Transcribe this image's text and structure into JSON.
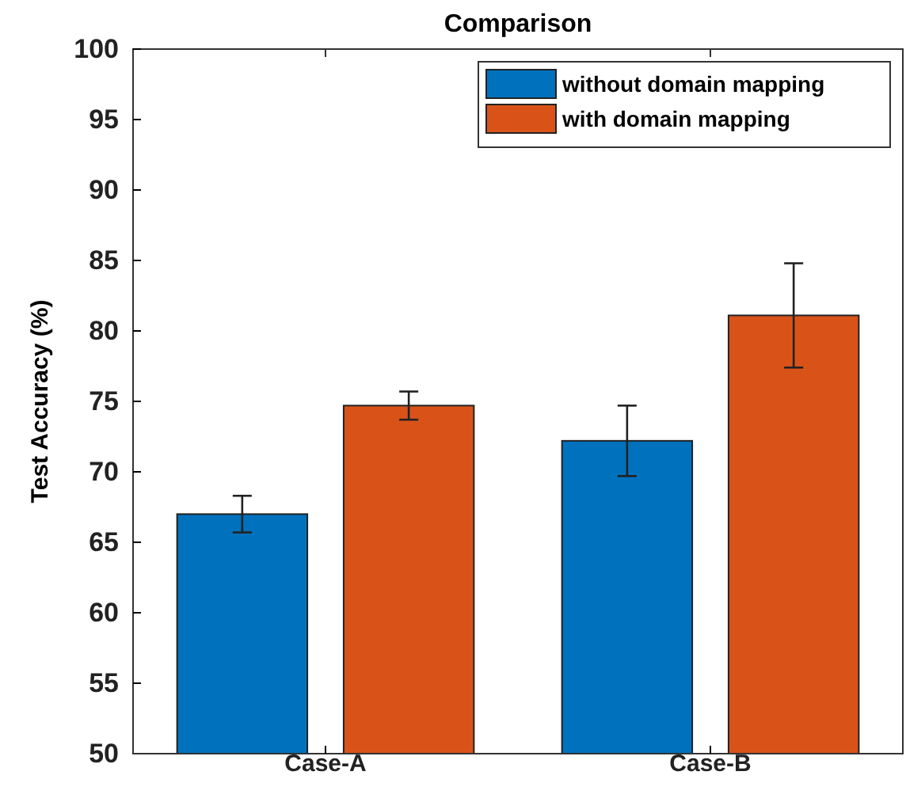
{
  "chart_data": {
    "type": "bar",
    "title": "Comparison",
    "ylabel": "Test Accuracy (%)",
    "categories": [
      "Case-A",
      "Case-B"
    ],
    "series": [
      {
        "name": "without domain mapping",
        "color": "#0072bd",
        "values": [
          67.0,
          72.2
        ],
        "errors": [
          1.3,
          2.5
        ]
      },
      {
        "name": "with domain mapping",
        "color": "#d95319",
        "values": [
          74.7,
          81.1
        ],
        "errors": [
          1.0,
          3.7
        ]
      }
    ],
    "ylim": [
      50,
      100
    ],
    "yticks": [
      50,
      55,
      60,
      65,
      70,
      75,
      80,
      85,
      90,
      95,
      100
    ],
    "legend": "top right",
    "grid": false
  }
}
